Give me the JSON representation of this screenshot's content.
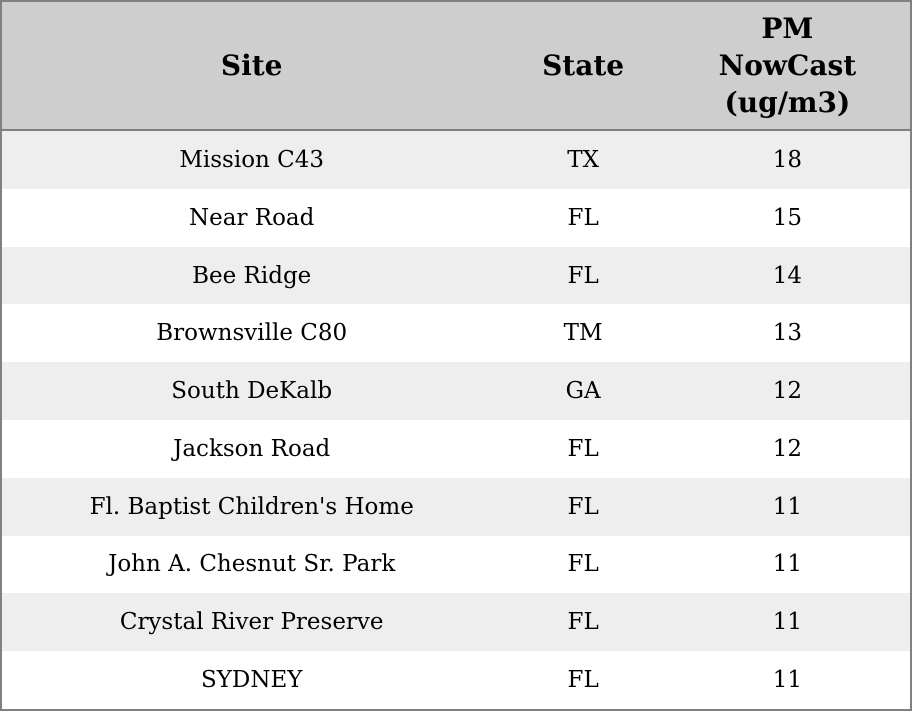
{
  "chart_data": {
    "type": "table",
    "columns": {
      "site": "Site",
      "state": "State",
      "pm_full": "PM NowCast (ug/m3)",
      "pm_lines": [
        "PM",
        "NowCast",
        "(ug/m3)"
      ]
    },
    "rows": [
      {
        "site": "Mission C43",
        "state": "TX",
        "pm": "18"
      },
      {
        "site": "Near Road",
        "state": "FL",
        "pm": "15"
      },
      {
        "site": "Bee Ridge",
        "state": "FL",
        "pm": "14"
      },
      {
        "site": "Brownsville C80",
        "state": "TM",
        "pm": "13"
      },
      {
        "site": "South DeKalb",
        "state": "GA",
        "pm": "12"
      },
      {
        "site": "Jackson Road",
        "state": "FL",
        "pm": "12"
      },
      {
        "site": "Fl. Baptist Children's Home",
        "state": "FL",
        "pm": "11"
      },
      {
        "site": "John A. Chesnut Sr. Park",
        "state": "FL",
        "pm": "11"
      },
      {
        "site": "Crystal River Preserve",
        "state": "FL",
        "pm": "11"
      },
      {
        "site": "SYDNEY",
        "state": "FL",
        "pm": "11"
      }
    ],
    "layout": {
      "header_bg": "#cecece",
      "row_alt_bg": "#eeeeee",
      "row_bg": "#ffffff",
      "border_color": "#808080",
      "text_align": "center"
    }
  }
}
